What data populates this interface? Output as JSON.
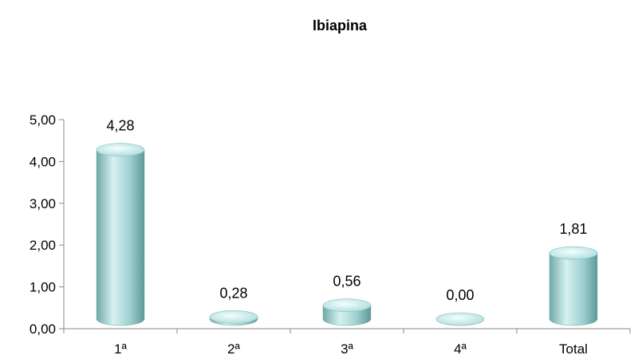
{
  "chart_data": {
    "type": "bar",
    "title": "Ibiapina",
    "categories": [
      "1ª",
      "2ª",
      "3ª",
      "4ª",
      "Total"
    ],
    "values": [
      4.28,
      0.28,
      0.56,
      0.0,
      1.81
    ],
    "value_labels": [
      "4,28",
      "0,28",
      "0,56",
      "0,00",
      "1,81"
    ],
    "ylim": [
      0,
      5
    ],
    "yticks": [
      "0,00",
      "1,00",
      "2,00",
      "3,00",
      "4,00",
      "5,00"
    ],
    "xlabel": "",
    "ylabel": "",
    "grid": false,
    "bar_style": "3d-cylinder",
    "bar_color": "#9fd3d3"
  }
}
